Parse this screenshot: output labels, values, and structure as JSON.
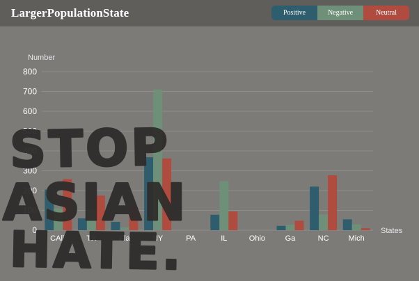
{
  "header": {
    "title": "LargerPopulationState"
  },
  "legend": [
    {
      "label": "Positive",
      "color": "#2e5e6e"
    },
    {
      "label": "Negative",
      "color": "#6e9078"
    },
    {
      "label": "Neutral",
      "color": "#b04c3f"
    }
  ],
  "overlay": {
    "lines": [
      "STOP",
      "ASIAN",
      "HATE."
    ]
  },
  "chart_data": {
    "type": "bar",
    "ylabel": "Number",
    "xlabel": "States",
    "ylim": [
      0,
      800
    ],
    "yticks": [
      0,
      100,
      200,
      300,
      400,
      500,
      600,
      700,
      800
    ],
    "grid": true,
    "legend_position": "top-right",
    "categories": [
      "CAlif",
      "TX",
      "Fla",
      "NY",
      "PA",
      "IL",
      "Ohio",
      "Ga",
      "NC",
      "Mich"
    ],
    "series": [
      {
        "name": "Positive",
        "color": "#2e5e6e",
        "values": [
          205,
          60,
          42,
          368,
          0,
          78,
          0,
          22,
          220,
          55
        ]
      },
      {
        "name": "Negative",
        "color": "#6e9078",
        "values": [
          110,
          105,
          15,
          710,
          0,
          248,
          0,
          28,
          80,
          30
        ]
      },
      {
        "name": "Neutral",
        "color": "#b04c3f",
        "values": [
          258,
          175,
          113,
          362,
          0,
          95,
          0,
          48,
          277,
          10
        ]
      }
    ]
  }
}
